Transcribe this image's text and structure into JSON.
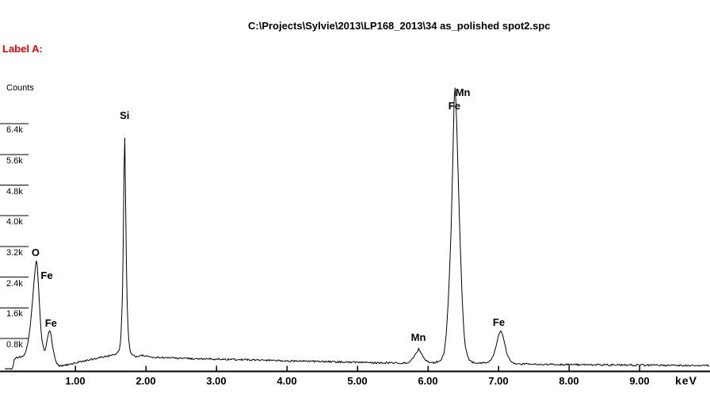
{
  "header": {
    "label": "Label A:",
    "color": "#ee0000"
  },
  "chart_data": {
    "type": "line",
    "title": "C:\\Projects\\Sylvie\\2013\\LP168_2013\\34 as_polished spot2.spc",
    "xlabel": "keV",
    "ylabel": "Counts",
    "xlim": [
      0,
      10
    ],
    "ylim": [
      0,
      7800
    ],
    "grid": false,
    "legend": "none",
    "line_color": "#000000",
    "x_ticks": [
      {
        "value": 1,
        "label": "1.00"
      },
      {
        "value": 2,
        "label": "2.00"
      },
      {
        "value": 3,
        "label": "3.00"
      },
      {
        "value": 4,
        "label": "4.00"
      },
      {
        "value": 5,
        "label": "5.00"
      },
      {
        "value": 6,
        "label": "6.00"
      },
      {
        "value": 7,
        "label": "7.00"
      },
      {
        "value": 8,
        "label": "8.00"
      },
      {
        "value": 9,
        "label": "9.00"
      }
    ],
    "y_ticks": [
      {
        "value": 6400,
        "label": "6.4k"
      },
      {
        "value": 5600,
        "label": "5.6k"
      },
      {
        "value": 4800,
        "label": "4.8k"
      },
      {
        "value": 4000,
        "label": "4.0k"
      },
      {
        "value": 3200,
        "label": "3.2k"
      },
      {
        "value": 2400,
        "label": "2.4k"
      },
      {
        "value": 1600,
        "label": "1.6k"
      },
      {
        "value": 800,
        "label": "0.8k"
      }
    ],
    "peaks": [
      {
        "element": "O",
        "kev": 0.45,
        "counts": 2850
      },
      {
        "element": "Fe L",
        "kev": 0.64,
        "counts": 1010
      },
      {
        "element": "Si K",
        "kev": 1.7,
        "counts": 6360
      },
      {
        "element": "Mn Ka",
        "kev": 5.87,
        "counts": 530
      },
      {
        "element": "Fe Ka + Mn Kb",
        "kev": 6.38,
        "counts": 7450
      },
      {
        "element": "Fe Kb",
        "kev": 7.03,
        "counts": 1010
      }
    ],
    "peak_labels": [
      {
        "text": "O",
        "kev": 0.38,
        "counts": 3180
      },
      {
        "text": "Fe",
        "kev": 0.51,
        "counts": 2580
      },
      {
        "text": "Fe",
        "kev": 0.57,
        "counts": 1340
      },
      {
        "text": "Si",
        "kev": 1.63,
        "counts": 6750
      },
      {
        "text": "Mn",
        "kev": 6.39,
        "counts": 7350
      },
      {
        "text": "Fe",
        "kev": 6.29,
        "counts": 7000
      },
      {
        "text": "Mn",
        "kev": 5.76,
        "counts": 965
      },
      {
        "text": "Fe",
        "kev": 6.92,
        "counts": 1360
      }
    ],
    "noise_counts": 22,
    "spectrum": [
      [
        0.0,
        10
      ],
      [
        0.1,
        12
      ],
      [
        0.12,
        60
      ],
      [
        0.13,
        230
      ],
      [
        0.16,
        300
      ],
      [
        0.2,
        310
      ],
      [
        0.24,
        330
      ],
      [
        0.27,
        350
      ],
      [
        0.3,
        450
      ],
      [
        0.33,
        700
      ],
      [
        0.36,
        1100
      ],
      [
        0.39,
        1700
      ],
      [
        0.42,
        2400
      ],
      [
        0.44,
        2750
      ],
      [
        0.45,
        2850
      ],
      [
        0.46,
        2700
      ],
      [
        0.48,
        2100
      ],
      [
        0.5,
        1400
      ],
      [
        0.52,
        850
      ],
      [
        0.55,
        550
      ],
      [
        0.57,
        470
      ],
      [
        0.59,
        650
      ],
      [
        0.61,
        850
      ],
      [
        0.63,
        990
      ],
      [
        0.645,
        1010
      ],
      [
        0.66,
        850
      ],
      [
        0.68,
        550
      ],
      [
        0.7,
        400
      ],
      [
        0.73,
        180
      ],
      [
        0.77,
        90
      ],
      [
        0.82,
        85
      ],
      [
        0.9,
        120
      ],
      [
        1.0,
        160
      ],
      [
        1.1,
        200
      ],
      [
        1.2,
        240
      ],
      [
        1.3,
        280
      ],
      [
        1.4,
        320
      ],
      [
        1.5,
        355
      ],
      [
        1.57,
        380
      ],
      [
        1.6,
        420
      ],
      [
        1.63,
        530
      ],
      [
        1.65,
        900
      ],
      [
        1.67,
        2000
      ],
      [
        1.68,
        3300
      ],
      [
        1.69,
        5000
      ],
      [
        1.7,
        6360
      ],
      [
        1.71,
        5000
      ],
      [
        1.72,
        3300
      ],
      [
        1.73,
        2200
      ],
      [
        1.74,
        1360
      ],
      [
        1.76,
        700
      ],
      [
        1.78,
        450
      ],
      [
        1.81,
        360
      ],
      [
        1.86,
        330
      ],
      [
        1.95,
        365
      ],
      [
        2.05,
        320
      ],
      [
        2.2,
        305
      ],
      [
        2.45,
        285
      ],
      [
        2.75,
        272
      ],
      [
        3.05,
        258
      ],
      [
        3.35,
        248
      ],
      [
        3.7,
        232
      ],
      [
        4.0,
        218
      ],
      [
        4.45,
        200
      ],
      [
        4.8,
        188
      ],
      [
        5.1,
        175
      ],
      [
        5.4,
        165
      ],
      [
        5.62,
        158
      ],
      [
        5.68,
        162
      ],
      [
        5.72,
        175
      ],
      [
        5.76,
        220
      ],
      [
        5.8,
        300
      ],
      [
        5.84,
        440
      ],
      [
        5.87,
        530
      ],
      [
        5.9,
        440
      ],
      [
        5.93,
        320
      ],
      [
        5.97,
        230
      ],
      [
        6.01,
        185
      ],
      [
        6.05,
        165
      ],
      [
        6.09,
        170
      ],
      [
        6.13,
        190
      ],
      [
        6.17,
        220
      ],
      [
        6.2,
        280
      ],
      [
        6.23,
        430
      ],
      [
        6.26,
        900
      ],
      [
        6.29,
        1800
      ],
      [
        6.31,
        2700
      ],
      [
        6.33,
        3700
      ],
      [
        6.35,
        5200
      ],
      [
        6.37,
        6900
      ],
      [
        6.38,
        7450
      ],
      [
        6.4,
        6900
      ],
      [
        6.42,
        5600
      ],
      [
        6.45,
        3700
      ],
      [
        6.47,
        2600
      ],
      [
        6.49,
        1700
      ],
      [
        6.51,
        1000
      ],
      [
        6.53,
        600
      ],
      [
        6.56,
        350
      ],
      [
        6.59,
        220
      ],
      [
        6.63,
        175
      ],
      [
        6.68,
        165
      ],
      [
        6.74,
        160
      ],
      [
        6.8,
        168
      ],
      [
        6.85,
        185
      ],
      [
        6.89,
        240
      ],
      [
        6.93,
        360
      ],
      [
        6.97,
        620
      ],
      [
        7.0,
        870
      ],
      [
        7.03,
        1010
      ],
      [
        7.06,
        900
      ],
      [
        7.09,
        650
      ],
      [
        7.12,
        420
      ],
      [
        7.15,
        270
      ],
      [
        7.19,
        185
      ],
      [
        7.23,
        150
      ],
      [
        7.3,
        135
      ],
      [
        7.5,
        128
      ],
      [
        7.8,
        122
      ],
      [
        8.1,
        117
      ],
      [
        8.4,
        112
      ],
      [
        8.8,
        107
      ],
      [
        9.2,
        102
      ],
      [
        9.6,
        97
      ],
      [
        10.0,
        93
      ]
    ]
  }
}
